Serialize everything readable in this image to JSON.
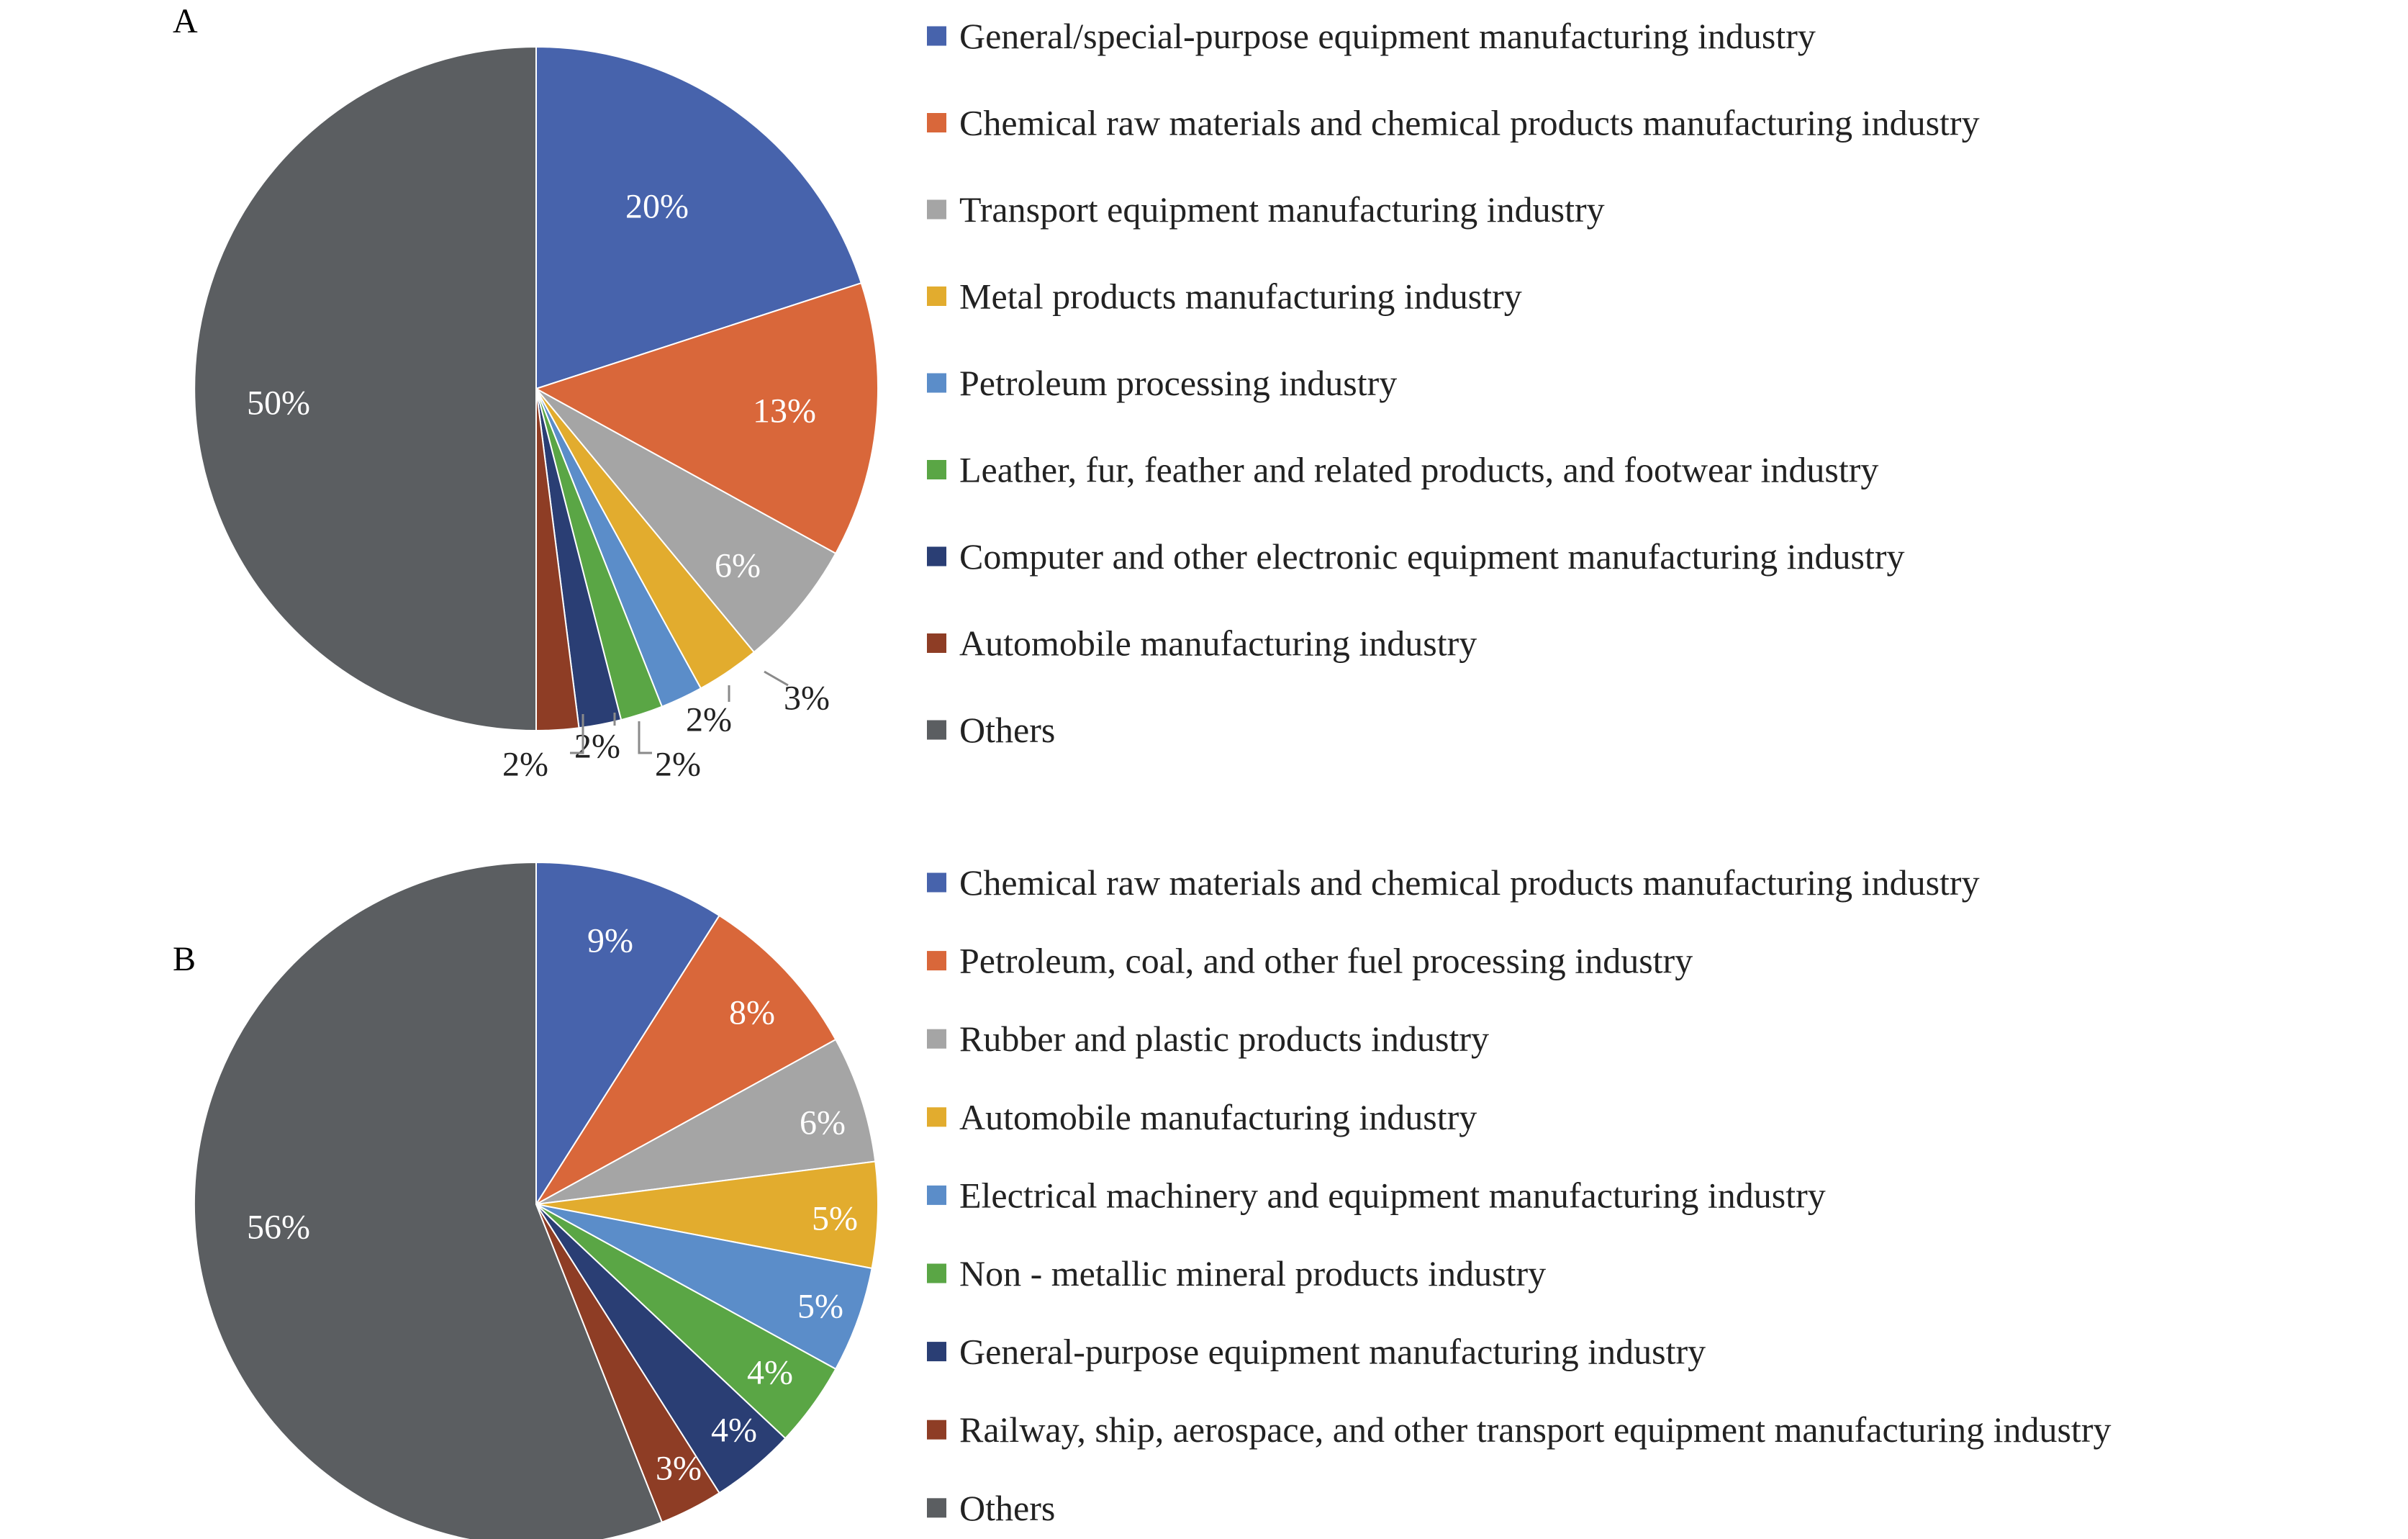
{
  "chart_data": [
    {
      "type": "pie",
      "panel_label": "A",
      "start_angle_deg": 0,
      "direction": "clockwise",
      "legend_position": "right",
      "slices": [
        {
          "label": "General/special-purpose equipment manufacturing industry",
          "value": 20,
          "value_label": "20%",
          "color": "#4763AC"
        },
        {
          "label": "Chemical raw materials and chemical products manufacturing industry",
          "value": 13,
          "value_label": "13%",
          "color": "#D9673A"
        },
        {
          "label": "Transport equipment manufacturing industry",
          "value": 6,
          "value_label": "6%",
          "color": "#A5A5A5"
        },
        {
          "label": "Metal products manufacturing industry",
          "value": 3,
          "value_label": "3%",
          "color": "#E2AC2E"
        },
        {
          "label": "Petroleum processing industry",
          "value": 2,
          "value_label": "2%",
          "color": "#5B8DC9"
        },
        {
          "label": "Leather, fur, feather and related products, and footwear industry",
          "value": 2,
          "value_label": "2%",
          "color": "#5AA645"
        },
        {
          "label": "Computer and other electronic equipment manufacturing industry",
          "value": 2,
          "value_label": "2%",
          "color": "#2A3E74"
        },
        {
          "label": "Automobile manufacturing industry",
          "value": 2,
          "value_label": "2%",
          "color": "#8E3D25"
        },
        {
          "label": "Others",
          "value": 50,
          "value_label": "50%",
          "color": "#5B5E61"
        }
      ]
    },
    {
      "type": "pie",
      "panel_label": "B",
      "start_angle_deg": 0,
      "direction": "clockwise",
      "legend_position": "right",
      "slices": [
        {
          "label": "Chemical raw materials and chemical products manufacturing industry",
          "value": 9,
          "value_label": "9%",
          "color": "#4763AC"
        },
        {
          "label": "Petroleum, coal, and other fuel processing industry",
          "value": 8,
          "value_label": "8%",
          "color": "#D9673A"
        },
        {
          "label": "Rubber and plastic products industry",
          "value": 6,
          "value_label": "6%",
          "color": "#A5A5A5"
        },
        {
          "label": "Automobile manufacturing industry",
          "value": 5,
          "value_label": "5%",
          "color": "#E2AC2E"
        },
        {
          "label": "Electrical machinery and equipment manufacturing industry",
          "value": 5,
          "value_label": "5%",
          "color": "#5B8DC9"
        },
        {
          "label": "Non - metallic mineral products industry",
          "value": 4,
          "value_label": "4%",
          "color": "#5AA645"
        },
        {
          "label": "General-purpose equipment manufacturing industry",
          "value": 4,
          "value_label": "4%",
          "color": "#2A3E74"
        },
        {
          "label": "Railway, ship, aerospace, and other transport equipment manufacturing industry",
          "value": 3,
          "value_label": "3%",
          "color": "#8E3D25"
        },
        {
          "label": "Others",
          "value": 56,
          "value_label": "56%",
          "color": "#5B5E61"
        }
      ]
    }
  ]
}
